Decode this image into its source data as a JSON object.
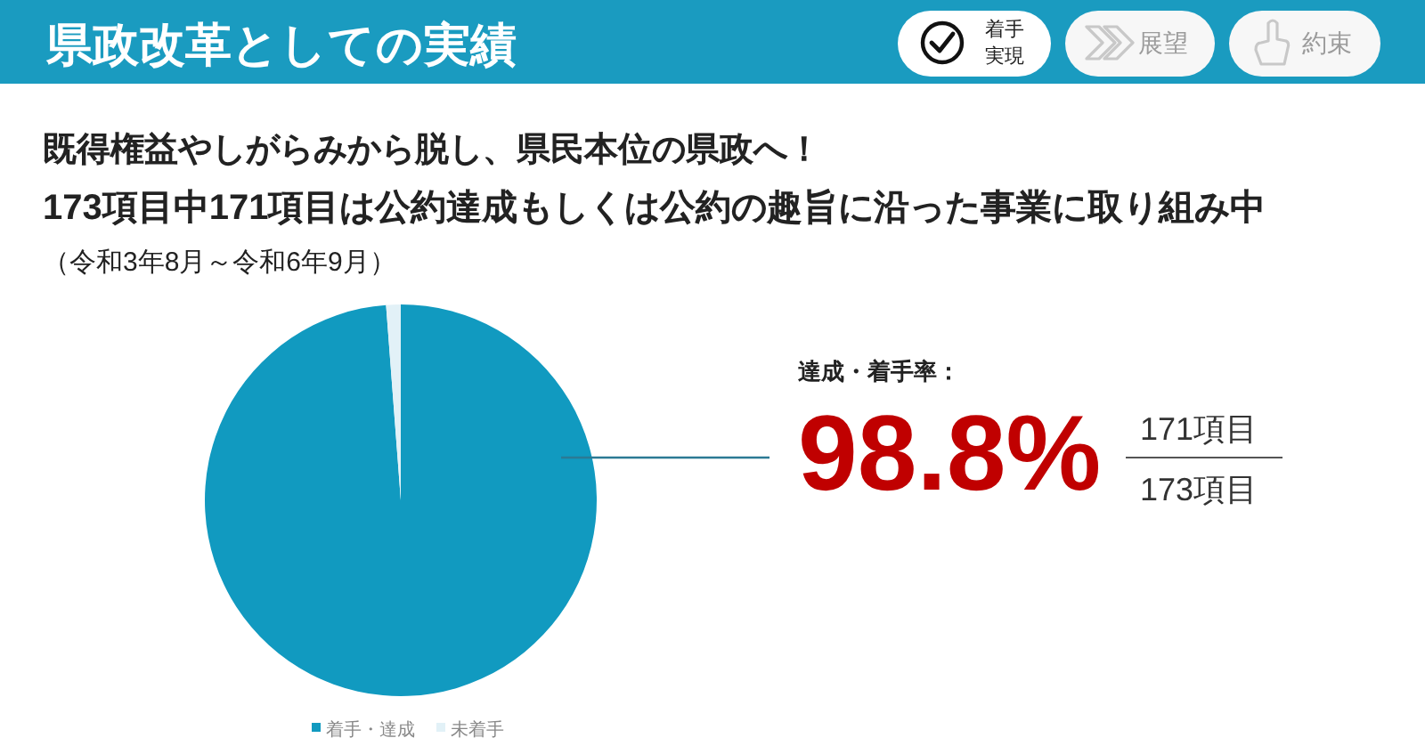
{
  "chart_data": {
    "type": "pie",
    "title": "県政改革としての実績",
    "subtitle": "既得権益やしがらみから脱し、県民本位の県政へ！",
    "annotations": [
      "173項目中171項目は公約達成もしくは公約の趣旨に沿った事業に取り組み中",
      "（令和3年8月～令和6年9月）",
      "達成・着手率：",
      "171項目",
      "173項目",
      "着手実現",
      "展望",
      "約束"
    ],
    "categories": [
      "着手・達成",
      "未着手"
    ],
    "values": [
      98.8,
      1.2
    ],
    "colors": [
      "#119ac0",
      "#e2f1f7"
    ],
    "value_labels": [
      "98.8%",
      null
    ],
    "legend": "bottom"
  }
}
